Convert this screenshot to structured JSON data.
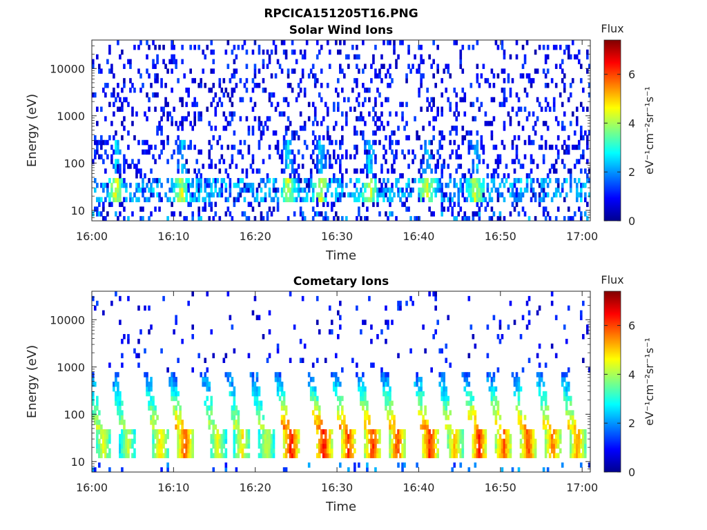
{
  "figure": {
    "title": "RPCICA151205T16.PNG",
    "background": "#ffffff",
    "colormap": "jet"
  },
  "chart_data": [
    {
      "type": "heatmap",
      "title": "Solar Wind Ions",
      "xlabel": "Time",
      "ylabel": "Energy (eV)",
      "x_range": [
        "16:00",
        "17:01"
      ],
      "y_range": [
        6,
        40000
      ],
      "y_scale": "log",
      "x_ticks": [
        "16:00",
        "16:10",
        "16:20",
        "16:30",
        "16:40",
        "16:50",
        "17:00"
      ],
      "y_ticks": [
        10,
        100,
        1000,
        10000
      ],
      "y_tick_labels": [
        "10",
        "100",
        "1000",
        "10000"
      ],
      "colorbar": {
        "title": "Flux",
        "label": "eV⁻¹cm⁻²sr⁻¹s⁻¹",
        "range": [
          0,
          7.4
        ],
        "ticks": [
          0,
          2,
          4,
          6
        ],
        "tick_labels": [
          "0",
          "2",
          "4",
          "6"
        ]
      },
      "grid": false,
      "features": {
        "background_noise_log_flux": [
          0.3,
          1.5
        ],
        "bands": [
          {
            "energy_ev": [
              15,
              45
            ],
            "log_flux": [
              1.5,
              4.5
            ]
          },
          {
            "energy_ev": [
              60,
              300
            ],
            "log_flux": [
              0.5,
              2.5
            ]
          }
        ],
        "bright_times": [
          "16:03",
          "16:11",
          "16:24",
          "16:28",
          "16:34",
          "16:41",
          "16:47"
        ]
      }
    },
    {
      "type": "heatmap",
      "title": "Cometary Ions",
      "xlabel": "Time",
      "ylabel": "Energy (eV)",
      "x_range": [
        "16:00",
        "17:01"
      ],
      "y_range": [
        6,
        40000
      ],
      "y_scale": "log",
      "x_ticks": [
        "16:00",
        "16:10",
        "16:20",
        "16:30",
        "16:40",
        "16:50",
        "17:00"
      ],
      "y_ticks": [
        10,
        100,
        1000,
        10000
      ],
      "y_tick_labels": [
        "10",
        "100",
        "1000",
        "10000"
      ],
      "colorbar": {
        "title": "Flux",
        "label": "eV⁻¹cm⁻²sr⁻¹s⁻¹",
        "range": [
          0,
          7.4
        ],
        "ticks": [
          0,
          2,
          4,
          6
        ],
        "tick_labels": [
          "0",
          "2",
          "4",
          "6"
        ]
      },
      "grid": false,
      "features": {
        "bursts": [
          {
            "time": "16:01",
            "peak_log_flux": 4.8
          },
          {
            "time": "16:04",
            "peak_log_flux": 4.5
          },
          {
            "time": "16:08",
            "peak_log_flux": 5.2
          },
          {
            "time": "16:11",
            "peak_log_flux": 6.3
          },
          {
            "time": "16:15",
            "peak_log_flux": 4.8
          },
          {
            "time": "16:18",
            "peak_log_flux": 5.0
          },
          {
            "time": "16:21",
            "peak_log_flux": 4.6
          },
          {
            "time": "16:24",
            "peak_log_flux": 6.8
          },
          {
            "time": "16:28",
            "peak_log_flux": 6.8
          },
          {
            "time": "16:31",
            "peak_log_flux": 6.4
          },
          {
            "time": "16:34",
            "peak_log_flux": 6.5
          },
          {
            "time": "16:37",
            "peak_log_flux": 6.3
          },
          {
            "time": "16:41",
            "peak_log_flux": 6.6
          },
          {
            "time": "16:44",
            "peak_log_flux": 5.5
          },
          {
            "time": "16:47",
            "peak_log_flux": 6.5
          },
          {
            "time": "16:50",
            "peak_log_flux": 6.2
          },
          {
            "time": "16:53",
            "peak_log_flux": 6.3
          },
          {
            "time": "16:56",
            "peak_log_flux": 6.0
          },
          {
            "time": "16:59",
            "peak_log_flux": 5.8
          }
        ],
        "energy_band_ev": [
          12,
          45
        ],
        "plume_top_ev": 500
      }
    }
  ]
}
